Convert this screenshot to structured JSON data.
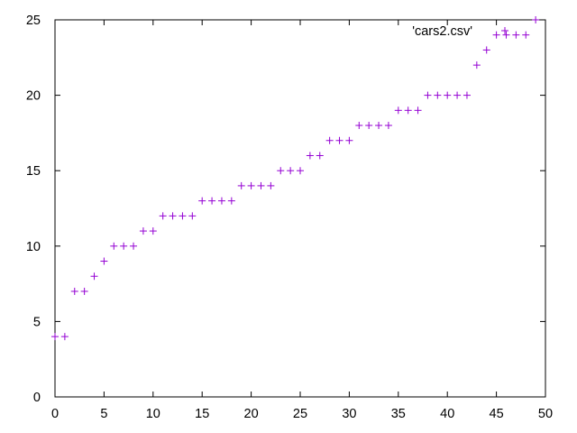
{
  "chart_data": {
    "type": "scatter",
    "title": "",
    "xlabel": "",
    "ylabel": "",
    "xlim": [
      0,
      50
    ],
    "ylim": [
      0,
      25
    ],
    "xticks": [
      0,
      5,
      10,
      15,
      20,
      25,
      30,
      35,
      40,
      45,
      50
    ],
    "yticks": [
      0,
      5,
      10,
      15,
      20,
      25
    ],
    "grid": false,
    "legend_position": "top-right",
    "marker": "plus",
    "series": [
      {
        "name": "'cars2.csv'",
        "color": "#9400d3",
        "x": [
          0,
          1,
          2,
          3,
          4,
          5,
          6,
          7,
          8,
          9,
          10,
          11,
          12,
          13,
          14,
          15,
          16,
          17,
          18,
          19,
          20,
          21,
          22,
          23,
          24,
          25,
          26,
          27,
          28,
          29,
          30,
          31,
          32,
          33,
          34,
          35,
          36,
          37,
          38,
          39,
          40,
          41,
          42,
          43,
          44,
          45,
          46,
          47,
          48,
          49
        ],
        "y": [
          4,
          4,
          7,
          7,
          8,
          9,
          10,
          10,
          10,
          11,
          11,
          12,
          12,
          12,
          12,
          13,
          13,
          13,
          13,
          14,
          14,
          14,
          14,
          15,
          15,
          15,
          16,
          16,
          17,
          17,
          17,
          18,
          18,
          18,
          18,
          19,
          19,
          19,
          20,
          20,
          20,
          20,
          20,
          22,
          23,
          24,
          24,
          24,
          24,
          25
        ]
      }
    ]
  }
}
